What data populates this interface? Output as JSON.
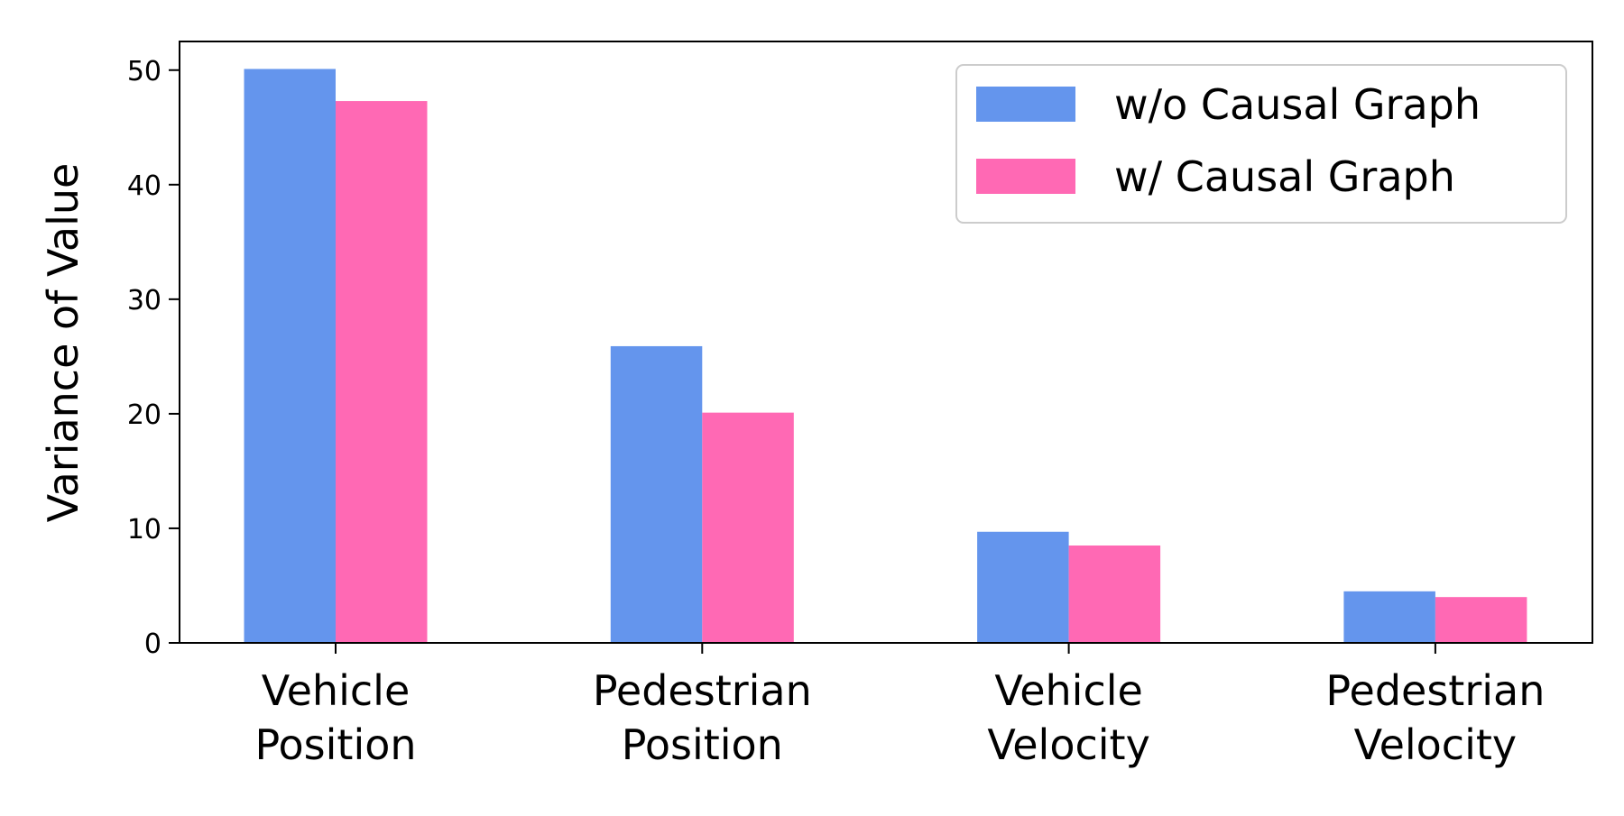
{
  "chart_data": {
    "type": "bar",
    "title": "",
    "xlabel": "",
    "ylabel": "Variance of Value",
    "ylim": [
      0,
      52.5
    ],
    "yticks": [
      0,
      10,
      20,
      30,
      40,
      50
    ],
    "grid": false,
    "legend_position": "top-right",
    "categories": [
      [
        "Vehicle",
        "Position"
      ],
      [
        "Pedestrian",
        "Position"
      ],
      [
        "Vehicle",
        "Velocity"
      ],
      [
        "Pedestrian",
        "Velocity"
      ]
    ],
    "series": [
      {
        "name": "w/o Causal Graph",
        "color": "#6495ED",
        "values": [
          50.1,
          25.9,
          9.7,
          4.5
        ]
      },
      {
        "name": "w/ Causal Graph",
        "color": "#FF69B4",
        "values": [
          47.3,
          20.1,
          8.5,
          4.0
        ]
      }
    ]
  }
}
